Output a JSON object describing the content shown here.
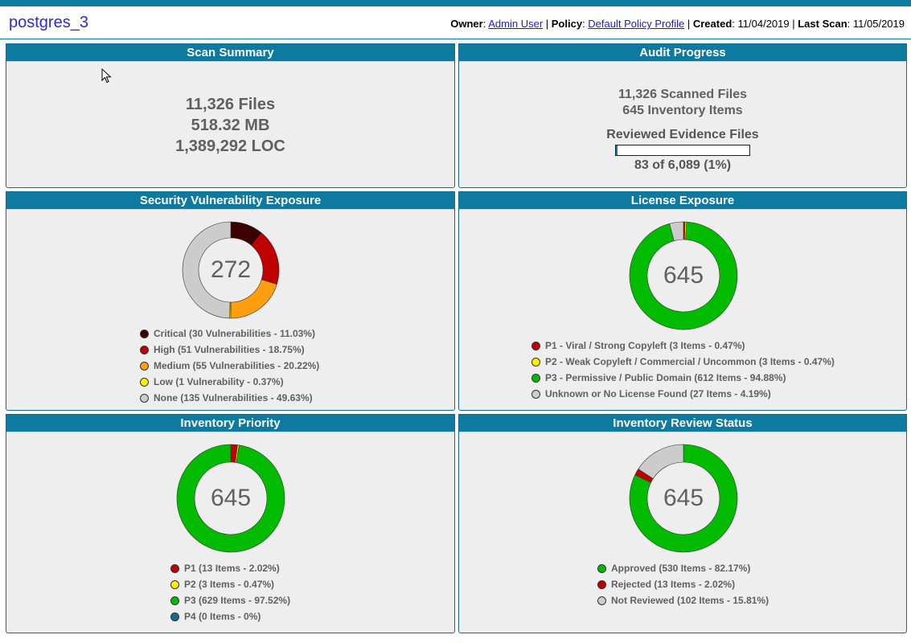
{
  "header": {
    "title": "postgres_3",
    "owner_label": "Owner",
    "owner_value": "Admin User",
    "policy_label": "Policy",
    "policy_value": "Default Policy Profile",
    "created_label": "Created",
    "created_value": "11/04/2019",
    "last_scan_label": "Last Scan",
    "last_scan_value": "11/05/2019"
  },
  "scan_summary": {
    "title": "Scan Summary",
    "files": "11,326 Files",
    "size": "518.32 MB",
    "loc": "1,389,292 LOC"
  },
  "audit_progress": {
    "title": "Audit Progress",
    "scanned_files": "11,326 Scanned Files",
    "inventory_items": "645 Inventory Items",
    "reviewed_label": "Reviewed Evidence Files",
    "progress_fraction": 0.0136,
    "progress_text": "83 of 6,089 (1%)"
  },
  "security": {
    "title": "Security Vulnerability Exposure",
    "total": "272",
    "segments": [
      {
        "label": "Critical (30 Vulnerabilities - 11.03%)",
        "value": 30,
        "color": "#3d0000"
      },
      {
        "label": "High (51 Vulnerabilities - 18.75%)",
        "value": 51,
        "color": "#c00000"
      },
      {
        "label": "Medium (55 Vulnerabilities - 20.22%)",
        "value": 55,
        "color": "#ff9f10"
      },
      {
        "label": "Low (1 Vulnerability - 0.37%)",
        "value": 1,
        "color": "#ffee00"
      },
      {
        "label": "None (135 Vulnerabilities - 49.63%)",
        "value": 135,
        "color": "#cccccc"
      }
    ]
  },
  "license": {
    "title": "License Exposure",
    "total": "645",
    "segments": [
      {
        "label": "P1 - Viral / Strong Copyleft (3 Items - 0.47%)",
        "value": 3,
        "color": "#c00000"
      },
      {
        "label": "P2 - Weak Copyleft / Commercial / Uncommon (3 Items - 0.47%)",
        "value": 3,
        "color": "#ffee00"
      },
      {
        "label": "P3 - Permissive / Public Domain (612 Items - 94.88%)",
        "value": 612,
        "color": "#00bb00"
      },
      {
        "label": "Unknown or No License Found (27 Items - 4.19%)",
        "value": 27,
        "color": "#cccccc"
      }
    ]
  },
  "priority": {
    "title": "Inventory Priority",
    "total": "645",
    "segments": [
      {
        "label": "P1 (13 Items - 2.02%)",
        "value": 13,
        "color": "#c00000"
      },
      {
        "label": "P2 (3 Items - 0.47%)",
        "value": 3,
        "color": "#ffee00"
      },
      {
        "label": "P3 (629 Items - 97.52%)",
        "value": 629,
        "color": "#00bb00"
      },
      {
        "label": "P4 (0 Items - 0%)",
        "value": 0,
        "color": "#0f6d90"
      }
    ]
  },
  "review": {
    "title": "Inventory Review Status",
    "total": "645",
    "segments": [
      {
        "label": "Approved (530 Items - 82.17%)",
        "value": 530,
        "color": "#00bb00"
      },
      {
        "label": "Rejected (13 Items - 2.02%)",
        "value": 13,
        "color": "#c00000"
      },
      {
        "label": "Not Reviewed (102 Items - 15.81%)",
        "value": 102,
        "color": "#cccccc"
      }
    ]
  },
  "icons": {
    "cursor": "mouse-pointer-icon"
  }
}
